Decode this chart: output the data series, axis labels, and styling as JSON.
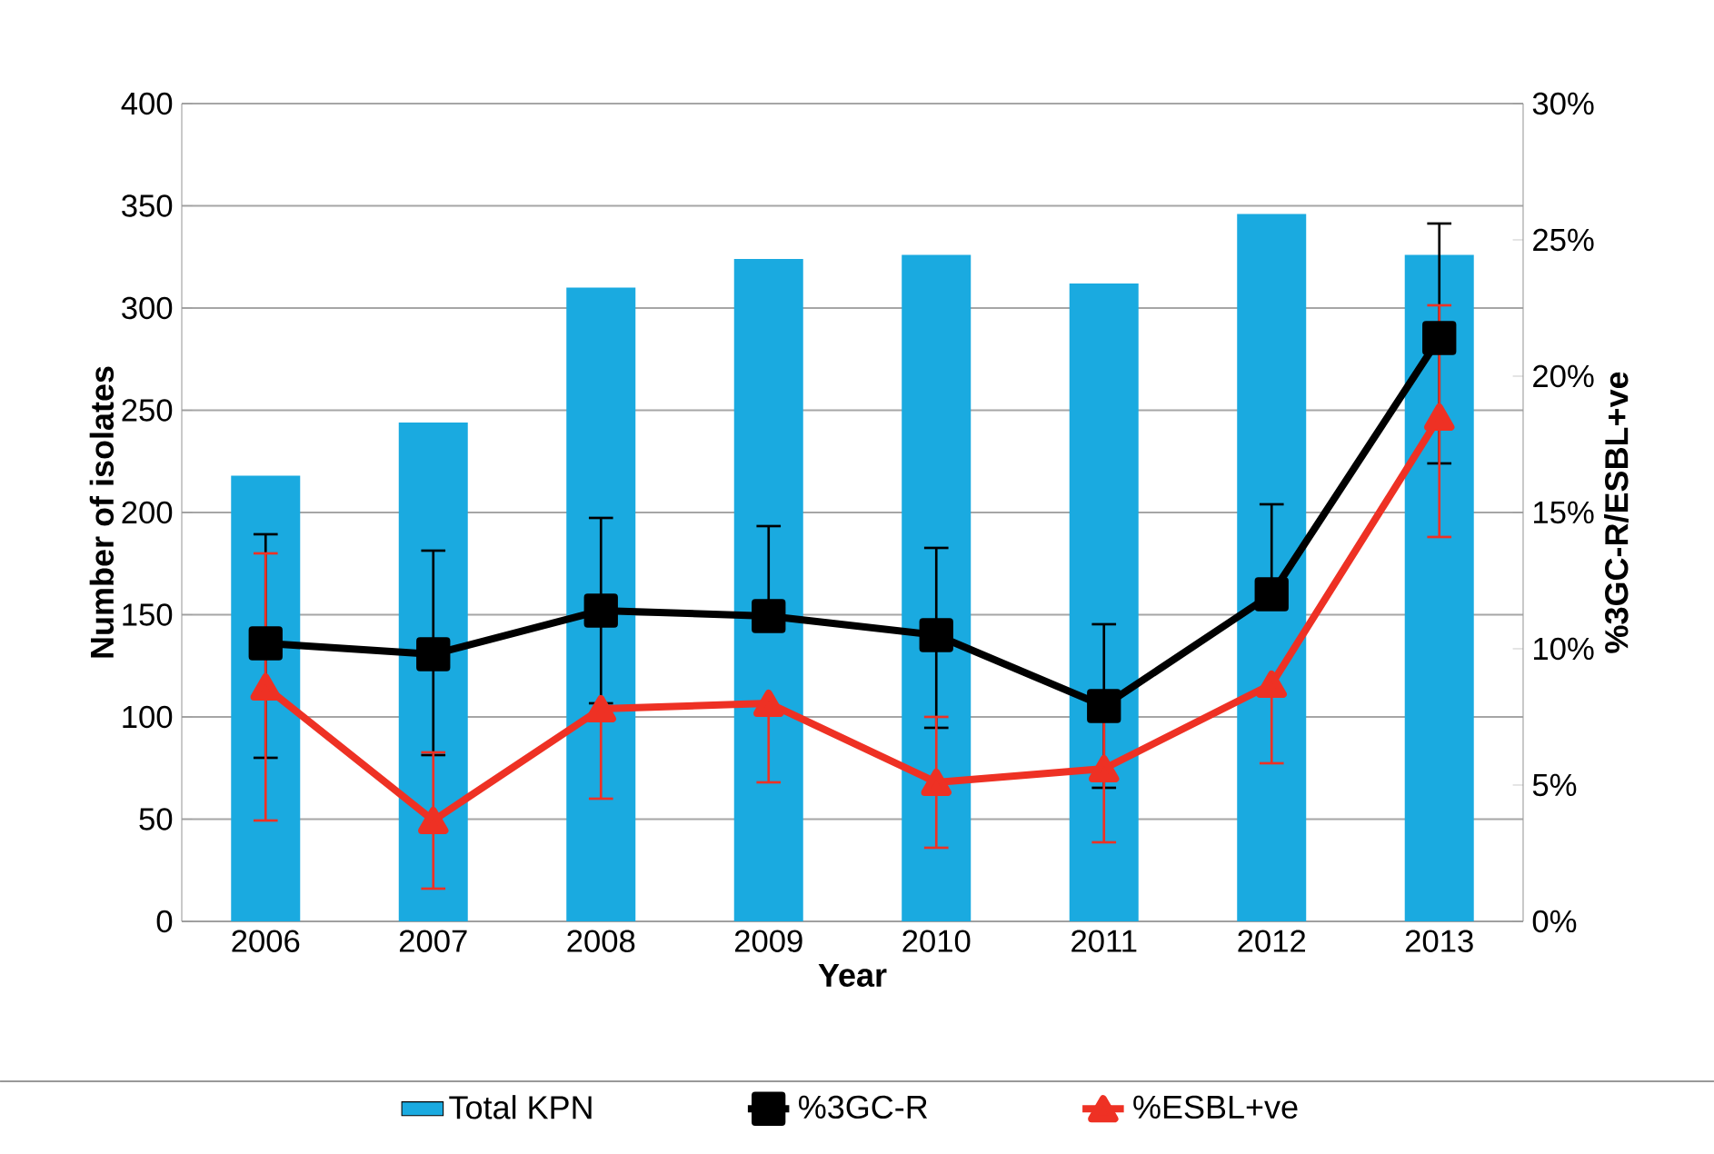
{
  "chart_data": {
    "type": "bar",
    "xlabel": "Year",
    "ylabel": "Number of isolates",
    "y2label": "%3GC-R/ESBL+ve",
    "categories": [
      "2006",
      "2007",
      "2008",
      "2009",
      "2010",
      "2011",
      "2012",
      "2013"
    ],
    "series": [
      {
        "name": "Total KPN",
        "color": "#1aaae0",
        "values": [
          218,
          244,
          310,
          324,
          326,
          312,
          346,
          326
        ]
      },
      {
        "name": "%3GC-R",
        "type": "line",
        "axis": "y2",
        "color": "#000000",
        "marker": "square",
        "values": [
          10.2,
          9.8,
          11.4,
          11.2,
          10.5,
          7.9,
          12.0,
          21.4
        ],
        "errors": [
          [
            6.0,
            14.2
          ],
          [
            6.1,
            13.6
          ],
          [
            8.0,
            14.8
          ],
          [
            11.2,
            14.5
          ],
          [
            7.1,
            13.7
          ],
          [
            4.9,
            10.9
          ],
          [
            12.0,
            15.3
          ],
          [
            16.8,
            25.6
          ]
        ]
      },
      {
        "name": "%ESBL+ve",
        "type": "line",
        "axis": "y2",
        "color": "#ee3124",
        "marker": "triangle",
        "values": [
          8.6,
          3.7,
          7.8,
          8.0,
          5.1,
          5.6,
          8.7,
          18.5
        ],
        "errors": [
          [
            3.7,
            13.5
          ],
          [
            1.2,
            6.2
          ],
          [
            4.5,
            7.8
          ],
          [
            5.1,
            8.0
          ],
          [
            2.7,
            7.5
          ],
          [
            2.9,
            8.3
          ],
          [
            5.8,
            8.7
          ],
          [
            14.1,
            22.6
          ]
        ]
      }
    ],
    "ylim": [
      0,
      400
    ],
    "yticks": [
      0,
      50,
      100,
      150,
      200,
      250,
      300,
      350,
      400
    ],
    "y2lim": [
      0,
      30
    ],
    "y2ticks": [
      {
        "value": 0,
        "label": "0%"
      },
      {
        "value": 5,
        "label": "5%"
      },
      {
        "value": 10,
        "label": "10%"
      },
      {
        "value": 15,
        "label": "15%"
      },
      {
        "value": 20,
        "label": "20%"
      },
      {
        "value": 25,
        "label": "25%"
      },
      {
        "value": 30,
        "label": "30%"
      }
    ],
    "grid": "y",
    "legend": "bottom"
  }
}
